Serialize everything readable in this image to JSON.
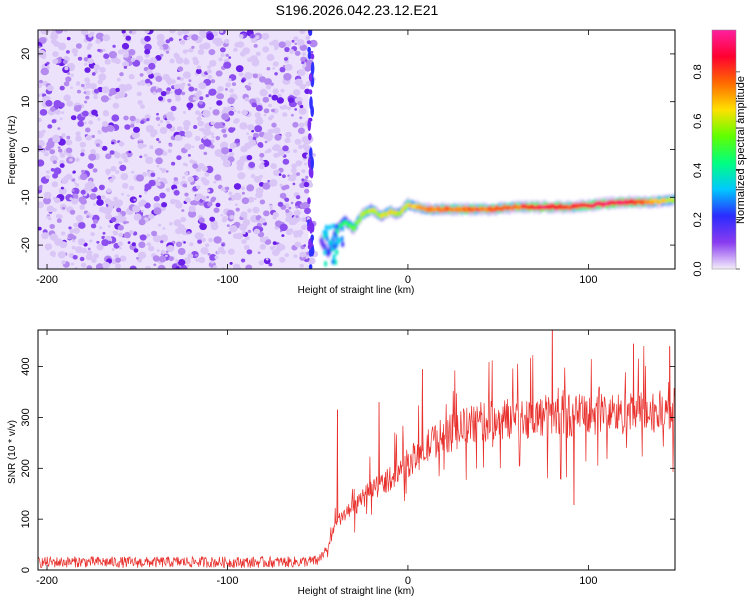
{
  "title": "S196.2026.042.23.12.E21",
  "spectrogram": {
    "type": "heatmap",
    "xlabel": "Height of straight line (km)",
    "ylabel": "Frequency (Hz)",
    "xlim": [
      -205,
      148
    ],
    "ylim": [
      -25,
      25
    ],
    "xticks": [
      "-200",
      "-100",
      "0",
      "100"
    ],
    "xtick_values": [
      -200,
      -100,
      0,
      100
    ],
    "yticks": [
      "20",
      "10",
      "0",
      "-10",
      "-20"
    ],
    "ytick_values": [
      20,
      10,
      0,
      -10,
      -20
    ],
    "noise_region": {
      "x_start": -205,
      "x_end": -55,
      "amplitude": 0.1
    },
    "signal_track": [
      {
        "x": -48,
        "freq": -19.0,
        "amp": 0.15
      },
      {
        "x": -44,
        "freq": -22.0,
        "amp": 0.25
      },
      {
        "x": -40,
        "freq": -17.0,
        "amp": 0.35
      },
      {
        "x": -35,
        "freq": -15.0,
        "amp": 0.45
      },
      {
        "x": -30,
        "freq": -16.5,
        "amp": 0.55
      },
      {
        "x": -25,
        "freq": -13.5,
        "amp": 0.6
      },
      {
        "x": -20,
        "freq": -12.5,
        "amp": 0.6
      },
      {
        "x": -15,
        "freq": -14.0,
        "amp": 0.6
      },
      {
        "x": -10,
        "freq": -13.0,
        "amp": 0.65
      },
      {
        "x": -5,
        "freq": -13.5,
        "amp": 0.6
      },
      {
        "x": 0,
        "freq": -11.5,
        "amp": 0.65
      },
      {
        "x": 10,
        "freq": -12.5,
        "amp": 0.7
      },
      {
        "x": 25,
        "freq": -12.5,
        "amp": 0.75
      },
      {
        "x": 45,
        "freq": -12.5,
        "amp": 0.75
      },
      {
        "x": 60,
        "freq": -12.0,
        "amp": 0.75
      },
      {
        "x": 75,
        "freq": -12.0,
        "amp": 0.9
      },
      {
        "x": 90,
        "freq": -12.0,
        "amp": 0.8
      },
      {
        "x": 105,
        "freq": -11.5,
        "amp": 0.9
      },
      {
        "x": 120,
        "freq": -11.0,
        "amp": 0.9
      },
      {
        "x": 135,
        "freq": -11.0,
        "amp": 0.7
      },
      {
        "x": 148,
        "freq": -10.5,
        "amp": 0.6
      }
    ]
  },
  "colorbar": {
    "label": "Normalized spectral amplitude",
    "ticks": [
      "0.0",
      "0.2",
      "0.4",
      "0.6",
      "0.8"
    ],
    "tick_values": [
      0,
      0.2,
      0.4,
      0.6,
      0.8
    ],
    "range": [
      0,
      0.97
    ],
    "colors": [
      "#f4eefb",
      "#8a3cf0",
      "#2b2bff",
      "#00c8ff",
      "#00ff80",
      "#60ff00",
      "#ffe000",
      "#ff6a00",
      "#ff0030",
      "#ff20a0"
    ]
  },
  "chart_data": {
    "type": "line",
    "xlabel": "Height of straight line (km)",
    "ylabel": "SNR (10 * v/v)",
    "xlim": [
      -205,
      148
    ],
    "ylim": [
      0,
      472
    ],
    "xticks": [
      "-200",
      "-100",
      "0",
      "100"
    ],
    "xtick_values": [
      -200,
      -100,
      0,
      100
    ],
    "yticks": [
      "0",
      "100",
      "200",
      "300",
      "400"
    ],
    "ytick_values": [
      0,
      100,
      200,
      300,
      400
    ],
    "line_color": "#e8302c",
    "series": [
      {
        "name": "SNR",
        "x": [
          -205,
          -180,
          -150,
          -120,
          -90,
          -60,
          -50,
          -45,
          -40,
          -35,
          -30,
          -25,
          -20,
          -15,
          -10,
          -5,
          0,
          5,
          10,
          15,
          20,
          25,
          30,
          40,
          50,
          60,
          70,
          80,
          90,
          100,
          110,
          120,
          130,
          140,
          148
        ],
        "values": [
          15,
          16,
          15,
          16,
          15,
          16,
          18,
          40,
          90,
          110,
          120,
          140,
          160,
          170,
          180,
          195,
          210,
          225,
          240,
          255,
          265,
          270,
          280,
          290,
          295,
          300,
          300,
          305,
          305,
          305,
          310,
          305,
          310,
          310,
          315
        ]
      }
    ],
    "peaks": [
      {
        "x": -39,
        "value": 315
      },
      {
        "x": -16,
        "value": 330
      },
      {
        "x": 8,
        "value": 395
      },
      {
        "x": 80,
        "value": 472
      },
      {
        "x": 92,
        "value": 128
      },
      {
        "x": 125,
        "value": 445
      },
      {
        "x": 145,
        "value": 440
      }
    ]
  }
}
